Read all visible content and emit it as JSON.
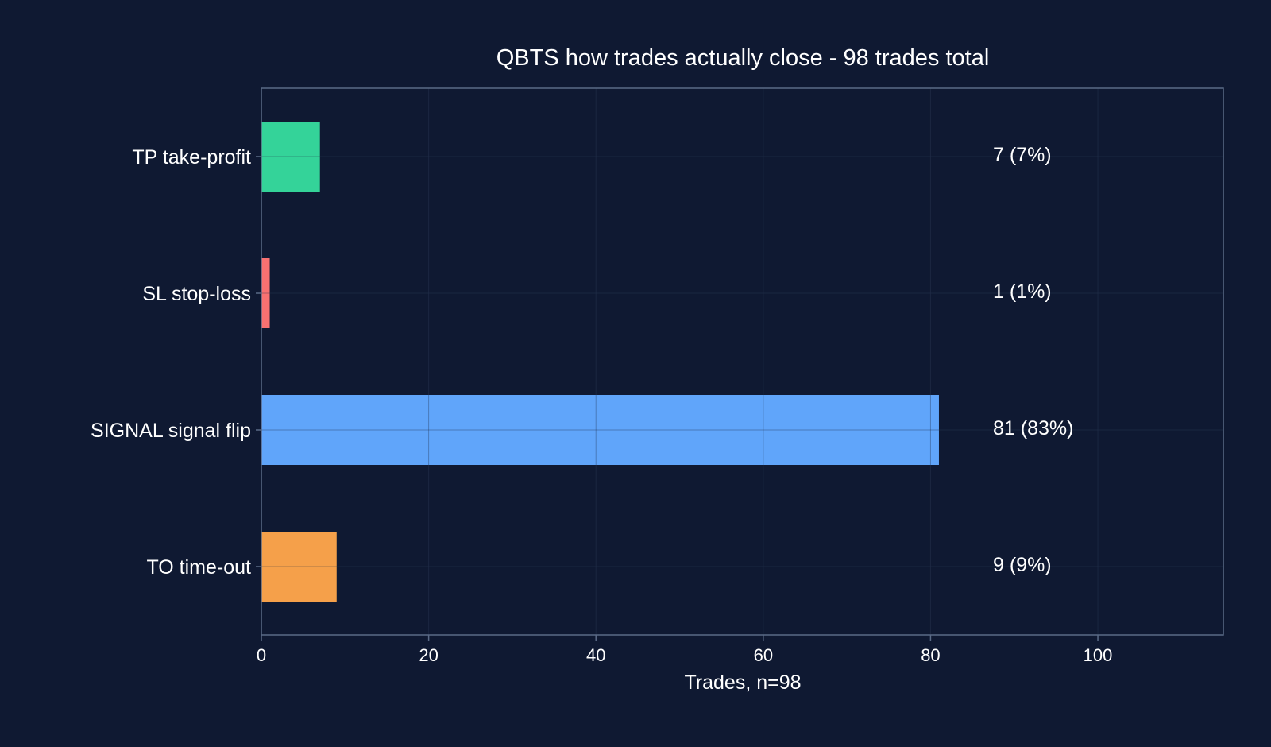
{
  "colors": {
    "background": "#0f1932",
    "axes_frame": "#5a6a86",
    "text": "#ffffff",
    "grid": "#2a3a58"
  },
  "chart_data": {
    "type": "bar",
    "orientation": "horizontal",
    "title": "QBTS how trades actually close - 98 trades total",
    "xlabel": "Trades, n=98",
    "ylabel": "",
    "xlim": [
      0,
      115
    ],
    "xticks": [
      0,
      20,
      40,
      60,
      80,
      100
    ],
    "grid": true,
    "categories": [
      "TP take-profit",
      "SL stop-loss",
      "SIGNAL signal flip",
      "TO time-out"
    ],
    "values": [
      7,
      1,
      81,
      9
    ],
    "bar_colors": [
      "#34d399",
      "#f87171",
      "#60a5fa",
      "#f5a04a"
    ],
    "annotations": [
      "7 (7%)",
      "1 (1%)",
      "81 (83%)",
      "9 (9%)"
    ]
  }
}
